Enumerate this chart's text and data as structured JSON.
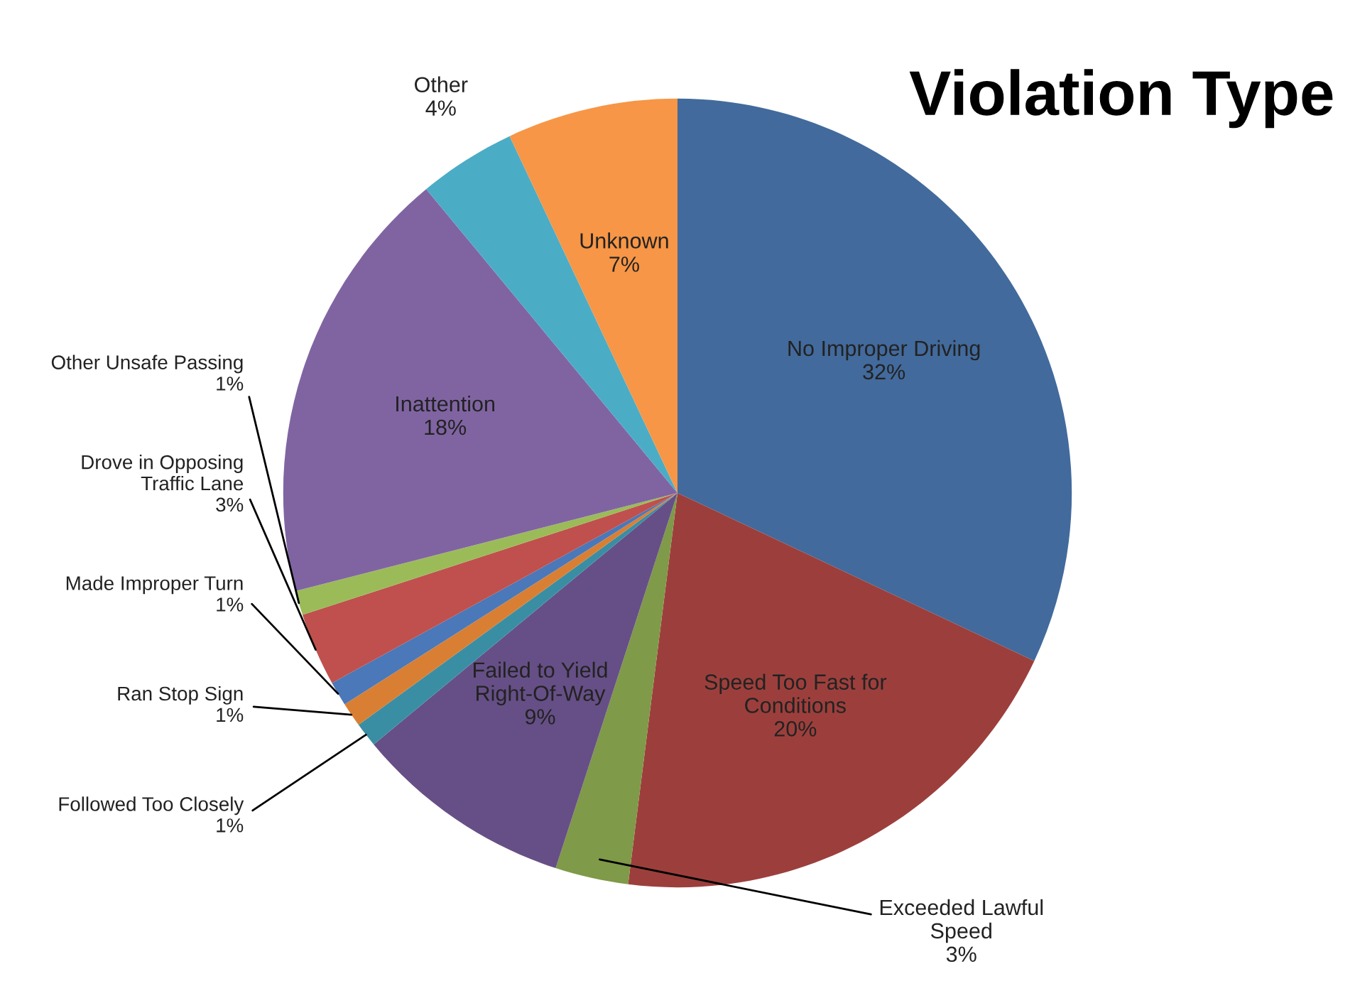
{
  "chart_data": {
    "type": "pie",
    "title": "Violation Type",
    "categories": [
      "No Improper Driving",
      "Speed Too Fast for Conditions",
      "Exceeded Lawful Speed",
      "Failed to Yield Right-Of-Way",
      "Followed Too Closely",
      "Ran Stop Sign",
      "Made Improper Turn",
      "Drove in Opposing Traffic Lane",
      "Other Unsafe Passing",
      "Inattention",
      "Other",
      "Unknown"
    ],
    "values": [
      32,
      20,
      3,
      9,
      1,
      1,
      1,
      3,
      1,
      18,
      4,
      7
    ],
    "value_labels": [
      "32%",
      "20%",
      "3%",
      "9%",
      "1%",
      "1%",
      "1%",
      "3%",
      "1%",
      "18%",
      "4%",
      "7%"
    ],
    "colors": [
      "#426a9c",
      "#9c3f3c",
      "#7f9a48",
      "#664f86",
      "#3a8ea3",
      "#d97f34",
      "#4a78b8",
      "#c0504d",
      "#9bbb59",
      "#8064a2",
      "#4bacc6",
      "#f79646"
    ],
    "legend": false
  }
}
